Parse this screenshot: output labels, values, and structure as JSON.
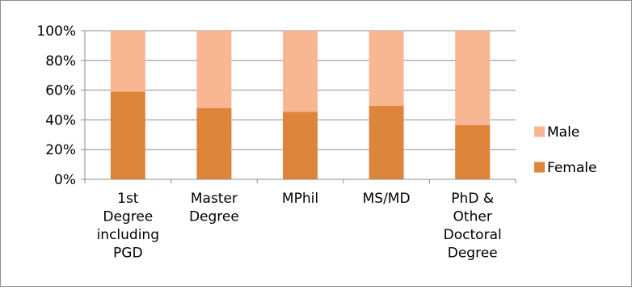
{
  "chart_data": {
    "type": "bar",
    "stacked": true,
    "percent": true,
    "categories": [
      [
        "1st",
        "Degree",
        "including",
        "PGD"
      ],
      [
        "Master",
        "Degree"
      ],
      [
        "MPhil"
      ],
      [
        "MS/MD"
      ],
      [
        "PhD &",
        "Other",
        "Doctoral",
        "Degree"
      ]
    ],
    "series": [
      {
        "name": "Female",
        "values": [
          59,
          48,
          45.5,
          49.5,
          36.5
        ],
        "color": "#DE853C"
      },
      {
        "name": "Male",
        "values": [
          41,
          52,
          54.5,
          50.5,
          63.5
        ],
        "color": "#F8B693"
      }
    ],
    "ylim": [
      0,
      100
    ],
    "yticks": [
      "0%",
      "20%",
      "40%",
      "60%",
      "80%",
      "100%"
    ],
    "grid": true,
    "legend": "right"
  }
}
